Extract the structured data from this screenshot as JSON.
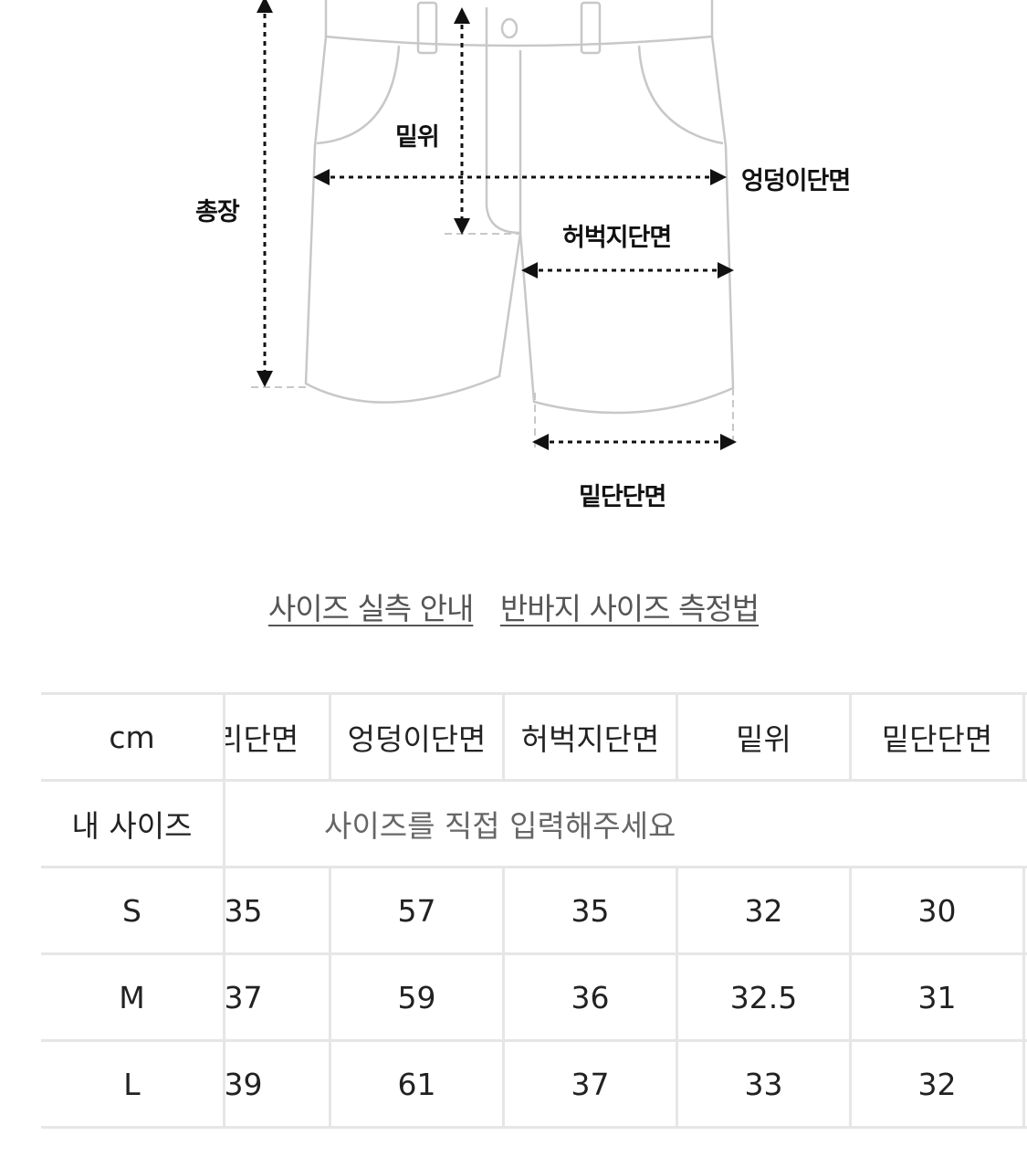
{
  "diagram": {
    "labels": {
      "total_length": "총장",
      "rise": "밑위",
      "hip": "엉덩이단면",
      "thigh": "허벅지단면",
      "hem": "밑단단면"
    }
  },
  "links": {
    "size_guide": "사이즈 실측 안내",
    "measure_method": "반바지 사이즈 측정법"
  },
  "table": {
    "unit_header": "cm",
    "columns": [
      "허리단면",
      "엉덩이단면",
      "허벅지단면",
      "밑위",
      "밑단단면"
    ],
    "my_size_label": "내 사이즈",
    "my_size_placeholder": "사이즈를 직접 입력해주세요",
    "rows": [
      {
        "size": "S",
        "values": [
          "35",
          "57",
          "35",
          "32",
          "30"
        ]
      },
      {
        "size": "M",
        "values": [
          "37",
          "59",
          "36",
          "32.5",
          "31"
        ]
      },
      {
        "size": "L",
        "values": [
          "39",
          "61",
          "37",
          "33",
          "32"
        ]
      }
    ]
  }
}
